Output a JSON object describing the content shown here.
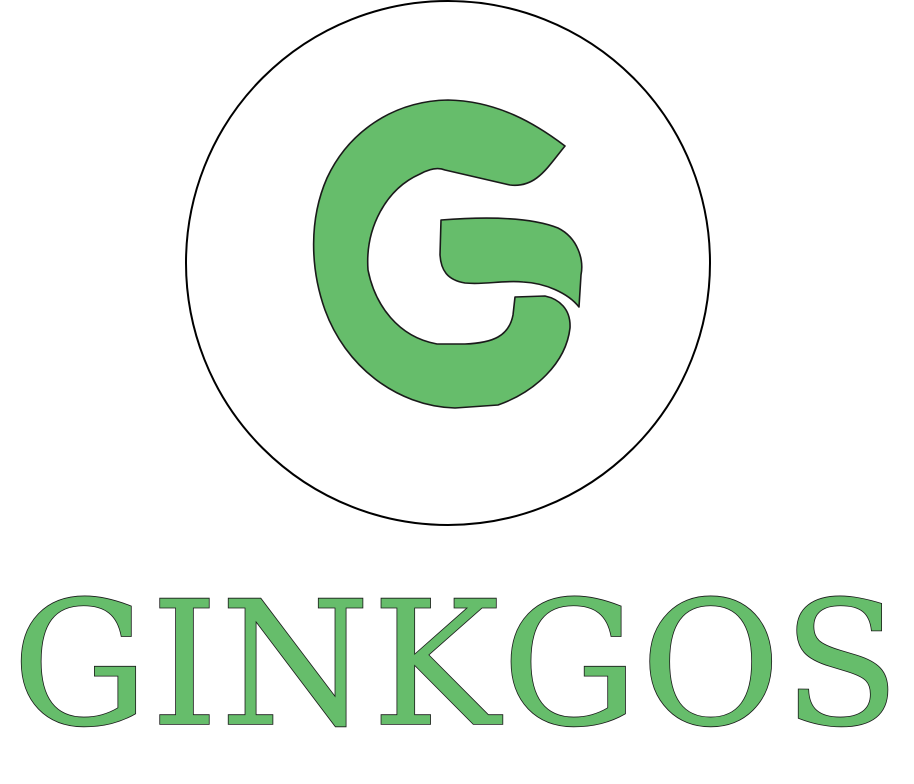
{
  "logo": {
    "wordmark": "GINKGOS",
    "emblem_letter": "G",
    "colors": {
      "fill": "#66bd6b",
      "outline": "#1a1a1a",
      "circle_stroke": "#000000",
      "background": "#ffffff"
    }
  }
}
